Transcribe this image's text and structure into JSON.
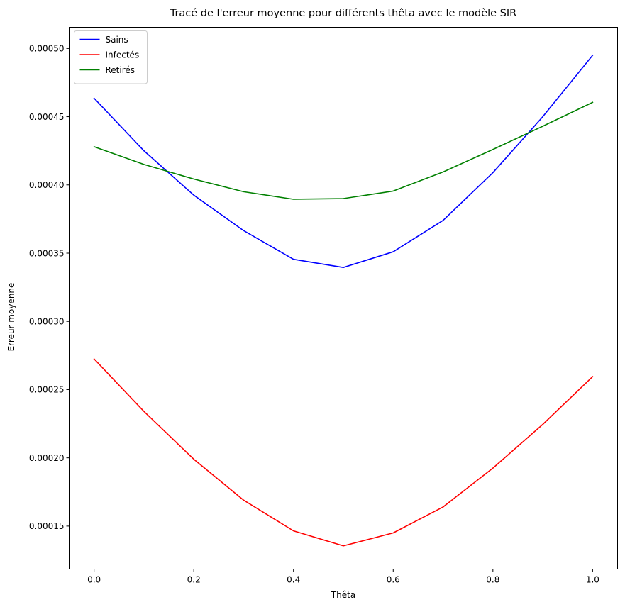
{
  "chart_data": {
    "type": "line",
    "title": "Tracé de l'erreur moyenne pour différents thêta avec le modèle SIR",
    "xlabel": "Thêta",
    "ylabel": "Erreur moyenne",
    "xlim": [
      -0.05,
      1.05
    ],
    "ylim": [
      0.0001185,
      0.0005155
    ],
    "xticks": [
      0.0,
      0.2,
      0.4,
      0.6,
      0.8,
      1.0
    ],
    "xtick_labels": [
      "0.0",
      "0.2",
      "0.4",
      "0.6",
      "0.8",
      "1.0"
    ],
    "yticks": [
      0.00015,
      0.0002,
      0.00025,
      0.0003,
      0.00035,
      0.0004,
      0.00045,
      0.0005
    ],
    "ytick_labels": [
      "0.00015",
      "0.00020",
      "0.00025",
      "0.00030",
      "0.00035",
      "0.00040",
      "0.00045",
      "0.00050"
    ],
    "grid": false,
    "legend_position": "top-left",
    "x": [
      0.0,
      0.1,
      0.2,
      0.3,
      0.4,
      0.5,
      0.6,
      0.7,
      0.8,
      0.9,
      1.0
    ],
    "series": [
      {
        "name": "Sains",
        "color": "#0000ff",
        "values": [
          0.0004635,
          0.000425,
          0.0003925,
          0.0003665,
          0.0003455,
          0.0003395,
          0.000351,
          0.000374,
          0.000409,
          0.00045,
          0.000495
        ]
      },
      {
        "name": "Infectés",
        "color": "#ff0000",
        "values": [
          0.0002725,
          0.000234,
          0.000199,
          0.000169,
          0.0001465,
          0.0001355,
          0.000145,
          0.000164,
          0.0001925,
          0.0002245,
          0.0002595
        ]
      },
      {
        "name": "Retirés",
        "color": "#008000",
        "values": [
          0.000428,
          0.000415,
          0.0004043,
          0.000395,
          0.0003895,
          0.00039,
          0.0003955,
          0.0004095,
          0.000426,
          0.000443,
          0.0004605
        ]
      }
    ]
  }
}
